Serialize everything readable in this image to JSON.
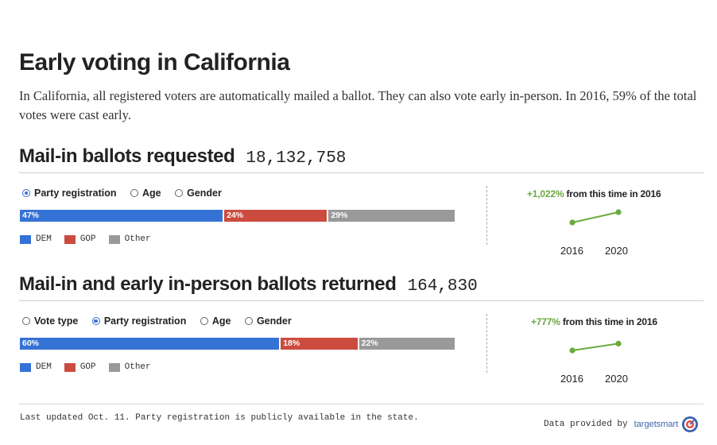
{
  "header": {
    "title": "Early voting in California",
    "intro": "In California, all registered voters are automatically mailed a ballot. They can also vote early in-person. In 2016, 59% of the total votes were cast early."
  },
  "colors": {
    "dem": "#3572d6",
    "gop": "#cc4b3f",
    "other": "#999999",
    "growth": "#6aaa3d"
  },
  "sections": [
    {
      "title": "Mail-in ballots requested",
      "count": "18,132,758",
      "options": [
        {
          "label": "Party registration",
          "selected": true
        },
        {
          "label": "Age",
          "selected": false
        },
        {
          "label": "Gender",
          "selected": false
        }
      ],
      "bar": [
        {
          "label": "47%",
          "value": 47,
          "color": "#3572d6"
        },
        {
          "label": "24%",
          "value": 24,
          "color": "#cc4b3f"
        },
        {
          "label": "29%",
          "value": 29,
          "color": "#999999"
        }
      ],
      "legend": [
        "DEM",
        "GOP",
        "Other"
      ],
      "growth": {
        "pct": "+1,022%",
        "text": "from this time in 2016",
        "y2016": 1,
        "y2020": 10.22
      },
      "years": [
        "2016",
        "2020"
      ]
    },
    {
      "title": "Mail-in and early in-person ballots returned",
      "count": "164,830",
      "options": [
        {
          "label": "Vote type",
          "selected": false
        },
        {
          "label": "Party registration",
          "selected": true
        },
        {
          "label": "Age",
          "selected": false
        },
        {
          "label": "Gender",
          "selected": false
        }
      ],
      "bar": [
        {
          "label": "60%",
          "value": 60,
          "color": "#3572d6"
        },
        {
          "label": "18%",
          "value": 18,
          "color": "#cc4b3f"
        },
        {
          "label": "22%",
          "value": 22,
          "color": "#999999"
        }
      ],
      "legend": [
        "DEM",
        "GOP",
        "Other"
      ],
      "growth": {
        "pct": "+777%",
        "text": "from this time in 2016",
        "y2016": 1,
        "y2020": 7.77
      },
      "years": [
        "2016",
        "2020"
      ]
    }
  ],
  "footer": {
    "note": "Last updated Oct. 11. Party registration is publicly available in the state.",
    "credit": "Data provided by",
    "brand": "targetsmart"
  }
}
